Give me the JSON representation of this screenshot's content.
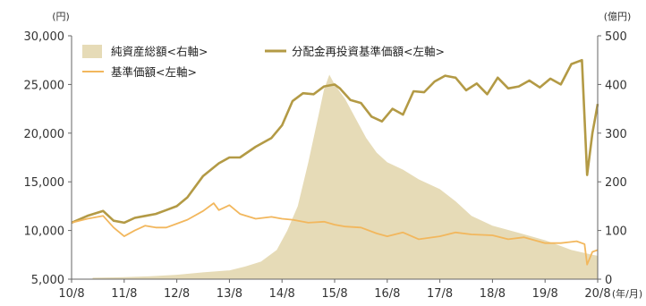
{
  "chart_data": {
    "type": "line",
    "title": "",
    "x_axis": {
      "categories": [
        "10/8",
        "11/8",
        "12/8",
        "13/8",
        "14/8",
        "15/8",
        "16/8",
        "17/8",
        "18/8",
        "19/8",
        "20/8"
      ],
      "unit_label": "(年/月)"
    },
    "y_left": {
      "unit_label": "(円)",
      "range": [
        5000,
        30000
      ],
      "ticks": [
        "5,000",
        "10,000",
        "15,000",
        "20,000",
        "25,000",
        "30,000"
      ]
    },
    "y_right": {
      "unit_label": "(億円)",
      "range": [
        0,
        500
      ],
      "ticks": [
        "0",
        "100",
        "200",
        "300",
        "400",
        "500"
      ]
    },
    "grid": false,
    "legend_position": "top-left",
    "colors": {
      "net_assets": "#e6dbb7",
      "reinvested_nav": "#b39a45",
      "base_nav": "#f2b75d",
      "axis": "#666666"
    },
    "series": [
      {
        "name": "純資産総額<右軸>",
        "type": "area",
        "axis": "right",
        "x": [
          0.4,
          1,
          1.5,
          2,
          2.5,
          3,
          3.3,
          3.6,
          3.9,
          4.1,
          4.3,
          4.5,
          4.7,
          4.8,
          4.9,
          5.0,
          5.2,
          5.4,
          5.6,
          5.8,
          6.0,
          6.3,
          6.6,
          7.0,
          7.3,
          7.6,
          8.0,
          8.5,
          9.0,
          9.5,
          9.9,
          10
        ],
        "values": [
          3,
          4,
          6,
          9,
          14,
          18,
          26,
          36,
          60,
          100,
          150,
          240,
          340,
          390,
          420,
          400,
          370,
          330,
          290,
          260,
          240,
          225,
          205,
          185,
          160,
          130,
          110,
          95,
          80,
          60,
          50,
          48
        ]
      },
      {
        "name": "分配金再投資基準価額<左軸>",
        "type": "line",
        "axis": "left",
        "x": [
          0,
          0.3,
          0.6,
          0.8,
          1.0,
          1.2,
          1.4,
          1.6,
          1.8,
          2.0,
          2.2,
          2.5,
          2.8,
          3.0,
          3.2,
          3.5,
          3.8,
          4.0,
          4.2,
          4.4,
          4.6,
          4.8,
          5.0,
          5.1,
          5.3,
          5.5,
          5.7,
          5.9,
          6.1,
          6.3,
          6.5,
          6.7,
          6.9,
          7.1,
          7.3,
          7.5,
          7.7,
          7.9,
          8.1,
          8.3,
          8.5,
          8.7,
          8.9,
          9.1,
          9.3,
          9.5,
          9.7,
          9.8,
          9.9,
          9.95,
          10.0
        ],
        "values": [
          10800,
          11500,
          12000,
          11000,
          10800,
          11300,
          11500,
          11700,
          12100,
          12500,
          13400,
          15600,
          16900,
          17500,
          17500,
          18600,
          19500,
          20800,
          23300,
          24100,
          24000,
          24800,
          25000,
          24600,
          23400,
          23100,
          21700,
          21200,
          22500,
          21900,
          24300,
          24200,
          25300,
          25900,
          25700,
          24400,
          25100,
          24000,
          25700,
          24600,
          24800,
          25400,
          24700,
          25600,
          25000,
          27100,
          27500,
          15700,
          20000,
          21500,
          23000
        ]
      },
      {
        "name": "基準価額<左軸>",
        "type": "line",
        "axis": "left",
        "x": [
          0,
          0.3,
          0.6,
          0.8,
          1.0,
          1.2,
          1.4,
          1.6,
          1.8,
          2.0,
          2.2,
          2.5,
          2.7,
          2.8,
          3.0,
          3.2,
          3.5,
          3.8,
          4.0,
          4.2,
          4.5,
          4.8,
          5.0,
          5.2,
          5.5,
          5.8,
          6.0,
          6.3,
          6.6,
          7.0,
          7.3,
          7.6,
          8.0,
          8.3,
          8.6,
          9.0,
          9.3,
          9.6,
          9.75,
          9.8,
          9.9,
          10.0
        ],
        "values": [
          10800,
          11200,
          11500,
          10300,
          9400,
          10000,
          10500,
          10300,
          10300,
          10700,
          11100,
          12000,
          12800,
          12100,
          12600,
          11700,
          11200,
          11400,
          11200,
          11100,
          10800,
          10900,
          10600,
          10400,
          10300,
          9700,
          9400,
          9800,
          9100,
          9400,
          9800,
          9600,
          9500,
          9100,
          9300,
          8700,
          8700,
          8900,
          8600,
          6500,
          7800,
          8000
        ]
      }
    ]
  }
}
